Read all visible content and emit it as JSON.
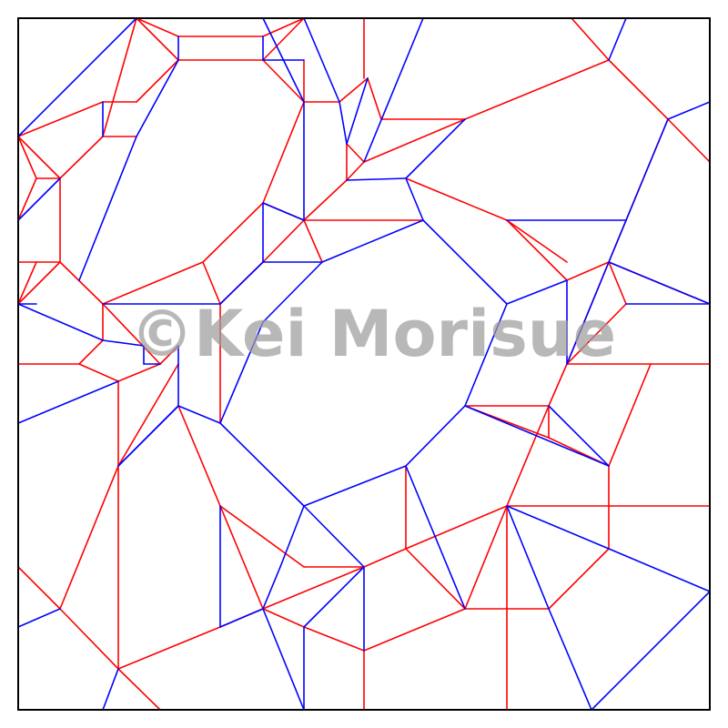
{
  "watermark": "©Kei Morisue",
  "colors": {
    "mountain": "#ff0000",
    "valley": "#0000ff",
    "border": "#000000",
    "watermark": "#9c9c9c"
  },
  "crease_pattern": {
    "sheet": [
      20,
      20,
      780,
      780
    ],
    "mountain": [
      [
        20,
        150,
        40,
        196
      ],
      [
        40,
        196,
        20,
        242
      ],
      [
        20,
        288,
        40,
        288
      ],
      [
        40,
        288,
        20,
        334
      ],
      [
        40,
        196,
        66,
        196
      ],
      [
        66,
        196,
        66,
        288
      ],
      [
        66,
        288,
        40,
        288
      ],
      [
        66,
        288,
        20,
        334
      ],
      [
        66,
        288,
        113,
        334
      ],
      [
        66,
        196,
        113,
        150
      ],
      [
        113,
        150,
        150,
        150
      ],
      [
        113,
        150,
        150,
        20
      ],
      [
        150,
        20,
        196,
        66
      ],
      [
        150,
        20,
        196,
        40
      ],
      [
        196,
        40,
        289,
        40
      ],
      [
        289,
        40,
        334,
        20
      ],
      [
        289,
        66,
        334,
        20
      ],
      [
        196,
        66,
        289,
        66
      ],
      [
        289,
        66,
        334,
        112
      ],
      [
        334,
        112,
        373,
        112
      ],
      [
        373,
        112,
        404,
        86
      ],
      [
        404,
        86,
        419,
        131
      ],
      [
        419,
        131,
        511,
        131
      ],
      [
        511,
        131,
        400,
        178
      ],
      [
        400,
        178,
        381,
        198
      ],
      [
        381,
        158,
        400,
        178
      ],
      [
        381,
        158,
        381,
        198
      ],
      [
        381,
        198,
        334,
        242
      ],
      [
        334,
        242,
        289,
        223
      ],
      [
        289,
        223,
        334,
        112
      ],
      [
        334,
        242,
        465,
        242
      ],
      [
        334,
        242,
        354,
        288
      ],
      [
        289,
        223,
        223,
        288
      ],
      [
        223,
        288,
        113,
        334
      ],
      [
        223,
        288,
        242,
        334
      ],
      [
        242,
        334,
        242,
        465
      ],
      [
        242,
        334,
        289,
        288
      ],
      [
        289,
        288,
        334,
        242
      ],
      [
        113,
        334,
        113,
        374
      ],
      [
        113,
        374,
        87,
        400
      ],
      [
        20,
        400,
        87,
        400
      ],
      [
        87,
        400,
        130,
        419
      ],
      [
        130,
        419,
        130,
        512
      ],
      [
        130,
        512,
        196,
        400
      ],
      [
        130,
        419,
        176,
        400
      ],
      [
        113,
        334,
        176,
        400
      ],
      [
        176,
        400,
        196,
        380
      ],
      [
        196,
        446,
        242,
        556
      ],
      [
        242,
        556,
        289,
        669
      ],
      [
        289,
        669,
        242,
        689
      ],
      [
        242,
        556,
        334,
        623
      ],
      [
        334,
        623,
        400,
        623
      ],
      [
        400,
        623,
        289,
        669
      ],
      [
        289,
        669,
        334,
        689
      ],
      [
        334,
        689,
        400,
        715
      ],
      [
        400,
        715,
        511,
        669
      ],
      [
        511,
        669,
        603,
        669
      ],
      [
        603,
        669,
        669,
        603
      ],
      [
        669,
        603,
        669,
        512
      ],
      [
        669,
        512,
        603,
        481
      ],
      [
        603,
        481,
        511,
        446
      ],
      [
        603,
        481,
        603,
        446
      ],
      [
        603,
        446,
        511,
        446
      ],
      [
        603,
        446,
        623,
        400
      ],
      [
        623,
        400,
        715,
        400
      ],
      [
        715,
        400,
        669,
        512
      ],
      [
        715,
        400,
        780,
        400
      ],
      [
        623,
        400,
        688,
        334
      ],
      [
        688,
        334,
        669,
        288
      ],
      [
        669,
        288,
        688,
        242
      ],
      [
        688,
        242,
        734,
        131
      ],
      [
        734,
        131,
        780,
        178
      ],
      [
        734,
        131,
        669,
        66
      ],
      [
        669,
        66,
        628,
        20
      ],
      [
        669,
        66,
        511,
        131
      ],
      [
        669,
        288,
        623,
        400
      ],
      [
        669,
        288,
        623,
        308
      ],
      [
        623,
        308,
        557,
        242
      ],
      [
        669,
        288,
        780,
        334
      ],
      [
        557,
        242,
        623,
        288
      ],
      [
        446,
        196,
        557,
        242
      ],
      [
        400,
        20,
        400,
        86
      ],
      [
        196,
        66,
        150,
        112
      ],
      [
        150,
        112,
        113,
        112
      ],
      [
        113,
        112,
        20,
        150
      ],
      [
        20,
        150,
        66,
        196
      ],
      [
        446,
        512,
        446,
        603
      ],
      [
        446,
        603,
        511,
        669
      ],
      [
        446,
        603,
        557,
        556
      ],
      [
        557,
        556,
        780,
        556
      ],
      [
        557,
        556,
        511,
        669
      ],
      [
        557,
        556,
        603,
        446
      ],
      [
        557,
        556,
        557,
        780
      ],
      [
        242,
        689,
        130,
        735
      ],
      [
        130,
        735,
        66,
        669
      ],
      [
        66,
        669,
        20,
        623
      ],
      [
        66,
        669,
        130,
        512
      ],
      [
        130,
        735,
        176,
        780
      ],
      [
        400,
        715,
        400,
        780
      ],
      [
        400,
        623,
        446,
        603
      ],
      [
        130,
        512,
        130,
        735
      ],
      [
        334,
        112,
        334,
        66
      ]
    ],
    "valley": [
      [
        20,
        150,
        150,
        20
      ],
      [
        20,
        242,
        20,
        288
      ],
      [
        66,
        196,
        20,
        242
      ],
      [
        20,
        334,
        40,
        334
      ],
      [
        20,
        334,
        113,
        374
      ],
      [
        113,
        374,
        158,
        380
      ],
      [
        158,
        380,
        158,
        400
      ],
      [
        158,
        400,
        176,
        400
      ],
      [
        113,
        334,
        223,
        334
      ],
      [
        223,
        334,
        242,
        334
      ],
      [
        242,
        334,
        289,
        288
      ],
      [
        289,
        288,
        354,
        288
      ],
      [
        354,
        288,
        465,
        242
      ],
      [
        465,
        242,
        446,
        196
      ],
      [
        446,
        196,
        381,
        198
      ],
      [
        446,
        196,
        511,
        131
      ],
      [
        400,
        178,
        465,
        20
      ],
      [
        381,
        158,
        373,
        112
      ],
      [
        334,
        112,
        334,
        242
      ],
      [
        334,
        242,
        289,
        223
      ],
      [
        289,
        223,
        289,
        288
      ],
      [
        196,
        380,
        196,
        446
      ],
      [
        196,
        446,
        242,
        465
      ],
      [
        242,
        465,
        289,
        354
      ],
      [
        289,
        354,
        354,
        288
      ],
      [
        20,
        465,
        130,
        419
      ],
      [
        130,
        512,
        196,
        446
      ],
      [
        196,
        446,
        130,
        512
      ],
      [
        242,
        465,
        334,
        556
      ],
      [
        334,
        556,
        446,
        512
      ],
      [
        446,
        512,
        511,
        446
      ],
      [
        511,
        446,
        557,
        334
      ],
      [
        557,
        334,
        465,
        242
      ],
      [
        557,
        334,
        623,
        308
      ],
      [
        623,
        308,
        623,
        400
      ],
      [
        623,
        400,
        669,
        288
      ],
      [
        669,
        288,
        780,
        334
      ],
      [
        688,
        334,
        780,
        334
      ],
      [
        688,
        242,
        557,
        242
      ],
      [
        669,
        288,
        734,
        131
      ],
      [
        734,
        131,
        780,
        112
      ],
      [
        669,
        66,
        688,
        20
      ],
      [
        603,
        446,
        669,
        512
      ],
      [
        511,
        446,
        669,
        512
      ],
      [
        446,
        512,
        511,
        669
      ],
      [
        400,
        623,
        400,
        715
      ],
      [
        334,
        556,
        308,
        623
      ],
      [
        308,
        623,
        289,
        669
      ],
      [
        289,
        669,
        242,
        689
      ],
      [
        242,
        689,
        242,
        556
      ],
      [
        289,
        669,
        334,
        780
      ],
      [
        334,
        689,
        334,
        780
      ],
      [
        334,
        689,
        400,
        623
      ],
      [
        400,
        623,
        334,
        556
      ],
      [
        557,
        556,
        669,
        603
      ],
      [
        669,
        603,
        780,
        650
      ],
      [
        780,
        650,
        650,
        780
      ],
      [
        650,
        780,
        603,
        669
      ],
      [
        557,
        556,
        603,
        669
      ],
      [
        130,
        735,
        113,
        780
      ],
      [
        20,
        689,
        66,
        669
      ],
      [
        196,
        66,
        150,
        150
      ],
      [
        150,
        150,
        87,
        308
      ],
      [
        113,
        112,
        113,
        150
      ],
      [
        196,
        40,
        196,
        66
      ],
      [
        289,
        40,
        289,
        66
      ],
      [
        334,
        20,
        373,
        112
      ],
      [
        334,
        66,
        289,
        66
      ],
      [
        334,
        112,
        289,
        20
      ],
      [
        404,
        86,
        381,
        158
      ]
    ]
  }
}
